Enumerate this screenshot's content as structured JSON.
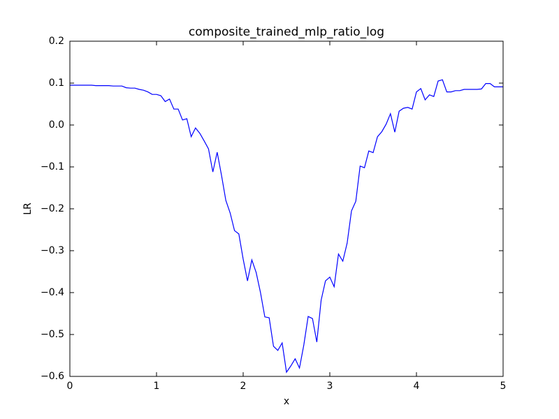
{
  "chart_data": {
    "type": "line",
    "title": "composite_trained_mlp_ratio_log",
    "x_label": "x",
    "y_label": "LR",
    "color": "#0000ff",
    "x": [
      0,
      0.05,
      0.1,
      0.15,
      0.2,
      0.25,
      0.3,
      0.35,
      0.4,
      0.45,
      0.5,
      0.55,
      0.6,
      0.65,
      0.7,
      0.75,
      0.8,
      0.85,
      0.9,
      0.95,
      1.0,
      1.05,
      1.1,
      1.15,
      1.2,
      1.25,
      1.3,
      1.35,
      1.4,
      1.45,
      1.5,
      1.55,
      1.6,
      1.65,
      1.7,
      1.75,
      1.8,
      1.85,
      1.9,
      1.95,
      2.0,
      2.05,
      2.1,
      2.15,
      2.2,
      2.25,
      2.3,
      2.35,
      2.4,
      2.45,
      2.5,
      2.55,
      2.6,
      2.65,
      2.7,
      2.75,
      2.8,
      2.85,
      2.9,
      2.95,
      3.0,
      3.05,
      3.1,
      3.15,
      3.2,
      3.25,
      3.3,
      3.35,
      3.4,
      3.45,
      3.5,
      3.55,
      3.6,
      3.65,
      3.7,
      3.75,
      3.8,
      3.85,
      3.9,
      3.95,
      4.0,
      4.05,
      4.1,
      4.15,
      4.2,
      4.25,
      4.3,
      4.35,
      4.4,
      4.45,
      4.5,
      4.55,
      4.6,
      4.65,
      4.7,
      4.75,
      4.8,
      4.85,
      4.9,
      4.95,
      5.0
    ],
    "values": [
      0.095,
      0.095,
      0.095,
      0.095,
      0.095,
      0.095,
      0.094,
      0.094,
      0.094,
      0.094,
      0.093,
      0.093,
      0.093,
      0.089,
      0.088,
      0.088,
      0.085,
      0.083,
      0.079,
      0.073,
      0.073,
      0.07,
      0.056,
      0.062,
      0.038,
      0.038,
      0.012,
      0.015,
      -0.028,
      -0.007,
      -0.02,
      -0.038,
      -0.057,
      -0.112,
      -0.065,
      -0.12,
      -0.18,
      -0.21,
      -0.252,
      -0.26,
      -0.32,
      -0.372,
      -0.322,
      -0.352,
      -0.4,
      -0.458,
      -0.46,
      -0.528,
      -0.538,
      -0.52,
      -0.59,
      -0.575,
      -0.558,
      -0.58,
      -0.525,
      -0.457,
      -0.462,
      -0.518,
      -0.418,
      -0.372,
      -0.363,
      -0.386,
      -0.308,
      -0.325,
      -0.282,
      -0.205,
      -0.182,
      -0.098,
      -0.102,
      -0.062,
      -0.066,
      -0.028,
      -0.016,
      0.002,
      0.027,
      -0.017,
      0.033,
      0.04,
      0.042,
      0.038,
      0.079,
      0.087,
      0.06,
      0.072,
      0.068,
      0.105,
      0.108,
      0.079,
      0.079,
      0.082,
      0.082,
      0.085,
      0.085,
      0.085,
      0.085,
      0.086,
      0.099,
      0.099,
      0.091,
      0.091,
      0.091
    ],
    "xlim": [
      0,
      5
    ],
    "xticks": [
      0,
      1,
      2,
      3,
      4,
      5
    ],
    "ylim": [
      -0.6,
      0.2
    ],
    "yticks": [
      {
        "value": -0.6,
        "label": "−0.6"
      },
      {
        "value": -0.5,
        "label": "−0.5"
      },
      {
        "value": -0.4,
        "label": "−0.4"
      },
      {
        "value": -0.3,
        "label": "−0.3"
      },
      {
        "value": -0.2,
        "label": "−0.2"
      },
      {
        "value": -0.1,
        "label": "−0.1"
      },
      {
        "value": 0,
        "label": "0.0"
      },
      0.1,
      0.2
    ],
    "grid": false
  }
}
